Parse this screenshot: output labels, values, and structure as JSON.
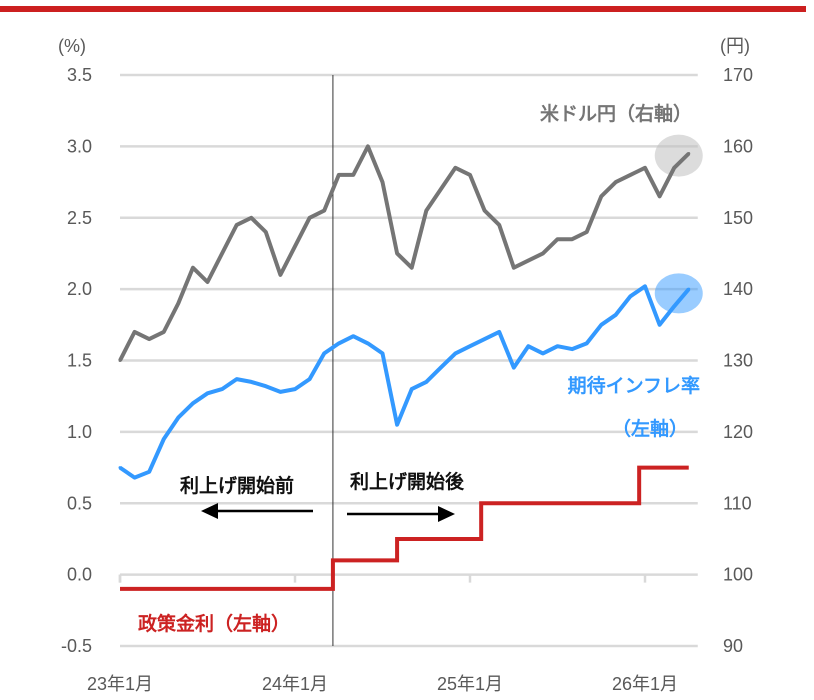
{
  "chart_data": {
    "type": "line",
    "left_axis": {
      "unit_label": "(%)",
      "ylim": [
        -0.5,
        3.5
      ],
      "ticks": [
        "3.5",
        "3.0",
        "2.5",
        "2.0",
        "1.5",
        "1.0",
        "0.5",
        "0.0",
        "-0.5"
      ]
    },
    "right_axis": {
      "unit_label": "(円)",
      "ylim": [
        90,
        170
      ],
      "ticks": [
        "170",
        "160",
        "150",
        "140",
        "130",
        "120",
        "110",
        "100",
        "90"
      ]
    },
    "x_ticks": [
      {
        "date": "2023-01",
        "label": "23年1月"
      },
      {
        "date": "2024-01",
        "label": "24年1月"
      },
      {
        "date": "2025-01",
        "label": "25年1月"
      },
      {
        "date": "2026-01",
        "label": "26年1月"
      }
    ],
    "xlim": [
      "2023-01",
      "2026-04"
    ],
    "grid": "horizontal",
    "divider_date": "2024-03-19",
    "annotations": {
      "before": "利上げ開始前",
      "after": "利上げ開始後"
    },
    "series": [
      {
        "name": "米ドル円（右軸）",
        "axis": "right",
        "color": "#757575",
        "dates": [
          "2023-01",
          "2023-02",
          "2023-03",
          "2023-04",
          "2023-05",
          "2023-06",
          "2023-07",
          "2023-08",
          "2023-09",
          "2023-10",
          "2023-11",
          "2023-12",
          "2024-01",
          "2024-02",
          "2024-03",
          "2024-04",
          "2024-05",
          "2024-06",
          "2024-07",
          "2024-08",
          "2024-09",
          "2024-10",
          "2024-11",
          "2024-12",
          "2025-01",
          "2025-02",
          "2025-03",
          "2025-04",
          "2025-05",
          "2025-06",
          "2025-07",
          "2025-08",
          "2025-09",
          "2025-10",
          "2025-11",
          "2025-12",
          "2026-01",
          "2026-02",
          "2026-03",
          "2026-04"
        ],
        "values": [
          130,
          134,
          133,
          134,
          138,
          143,
          141,
          145,
          149,
          150,
          148,
          142,
          146,
          150,
          151,
          156,
          156,
          160,
          155,
          145,
          143,
          151,
          154,
          157,
          156,
          151,
          149,
          143,
          144,
          145,
          147,
          147,
          148,
          153,
          155,
          156,
          157,
          153,
          157,
          159
        ]
      },
      {
        "name": "期待インフレ率（左軸）",
        "axis": "left",
        "color": "#3399ff",
        "dates": [
          "2023-01",
          "2023-02",
          "2023-03",
          "2023-04",
          "2023-05",
          "2023-06",
          "2023-07",
          "2023-08",
          "2023-09",
          "2023-10",
          "2023-11",
          "2023-12",
          "2024-01",
          "2024-02",
          "2024-03",
          "2024-04",
          "2024-05",
          "2024-06",
          "2024-07",
          "2024-08",
          "2024-09",
          "2024-10",
          "2024-11",
          "2024-12",
          "2025-01",
          "2025-02",
          "2025-03",
          "2025-04",
          "2025-05",
          "2025-06",
          "2025-07",
          "2025-08",
          "2025-09",
          "2025-10",
          "2025-11",
          "2025-12",
          "2026-01",
          "2026-02",
          "2026-03",
          "2026-04"
        ],
        "values": [
          0.75,
          0.68,
          0.72,
          0.95,
          1.1,
          1.2,
          1.27,
          1.3,
          1.37,
          1.35,
          1.32,
          1.28,
          1.3,
          1.37,
          1.55,
          1.62,
          1.67,
          1.62,
          1.55,
          1.05,
          1.3,
          1.35,
          1.45,
          1.55,
          1.6,
          1.65,
          1.7,
          1.45,
          1.6,
          1.55,
          1.6,
          1.58,
          1.62,
          1.75,
          1.82,
          1.95,
          2.02,
          1.75,
          1.88,
          2.0
        ]
      },
      {
        "name": "政策金利（左軸）",
        "axis": "left",
        "color": "#cc2222",
        "step": true,
        "dates": [
          "2023-01",
          "2024-03-19",
          "2024-07-31",
          "2025-01-24",
          "2025-12-19",
          "2026-04"
        ],
        "values": [
          -0.1,
          0.1,
          0.25,
          0.5,
          0.75,
          0.75
        ]
      }
    ]
  }
}
